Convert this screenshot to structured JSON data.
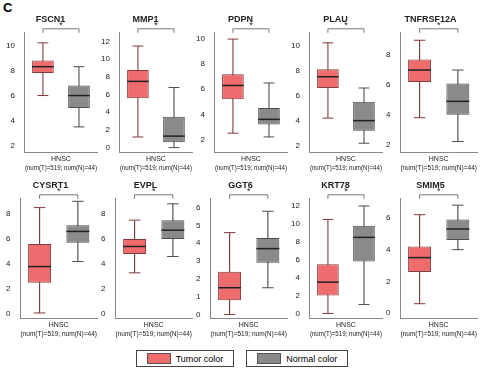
{
  "panel_label": "C",
  "chart_data": [
    {
      "type": "box",
      "title": "FSCN1",
      "x_label": "HNSC",
      "subtitle": "(num(T)=519; num(N)=44)",
      "annotation": "*",
      "categories": [
        null,
        null
      ],
      "ylim": [
        1.5,
        11
      ],
      "yticks": [
        2,
        4,
        6,
        8,
        10
      ],
      "grid": false,
      "series": [
        {
          "name": "Tumor color",
          "color": "#ee6b6e",
          "min": 6.0,
          "q1": 7.8,
          "median": 8.3,
          "q3": 8.8,
          "max": 10.2
        },
        {
          "name": "Normal color",
          "color": "#8a8a8a",
          "min": 3.5,
          "q1": 5.0,
          "median": 6.0,
          "q3": 6.8,
          "max": 8.3
        }
      ]
    },
    {
      "type": "box",
      "title": "MMP1",
      "x_label": "HNSC",
      "subtitle": "(num(T)=519; num(N)=44)",
      "annotation": "*",
      "categories": [
        null,
        null
      ],
      "ylim": [
        -0.5,
        13
      ],
      "yticks": [
        0,
        2,
        4,
        6,
        8,
        10,
        12
      ],
      "grid": false,
      "series": [
        {
          "name": "Tumor color",
          "color": "#ee6b6e",
          "min": 1.2,
          "q1": 5.6,
          "median": 7.5,
          "q3": 8.8,
          "max": 11.5
        },
        {
          "name": "Normal color",
          "color": "#8a8a8a",
          "min": 0,
          "q1": 0.6,
          "median": 1.3,
          "q3": 3.5,
          "max": 6.8
        }
      ]
    },
    {
      "type": "box",
      "title": "PDPN",
      "x_label": "HNSC",
      "subtitle": "(num(T)=519; num(N)=44)",
      "annotation": "*",
      "categories": [
        null,
        null
      ],
      "ylim": [
        1,
        10.5
      ],
      "yticks": [
        2,
        4,
        6,
        8,
        10
      ],
      "grid": false,
      "series": [
        {
          "name": "Tumor color",
          "color": "#ee6b6e",
          "min": 2.5,
          "q1": 5.2,
          "median": 6.3,
          "q3": 7.2,
          "max": 10.0
        },
        {
          "name": "Normal color",
          "color": "#8a8a8a",
          "min": 2.2,
          "q1": 3.2,
          "median": 3.6,
          "q3": 4.5,
          "max": 6.5
        }
      ]
    },
    {
      "type": "box",
      "title": "PLAU",
      "x_label": "HNSC",
      "subtitle": "(num(T)=519; num(N)=44)",
      "annotation": "*",
      "categories": [
        null,
        null
      ],
      "ylim": [
        1.5,
        11
      ],
      "yticks": [
        2,
        4,
        6,
        8,
        10
      ],
      "grid": false,
      "series": [
        {
          "name": "Tumor color",
          "color": "#ee6b6e",
          "min": 4.2,
          "q1": 6.6,
          "median": 7.5,
          "q3": 8.1,
          "max": 10.2
        },
        {
          "name": "Normal color",
          "color": "#8a8a8a",
          "min": 2.2,
          "q1": 3.2,
          "median": 4.0,
          "q3": 5.5,
          "max": 6.6
        }
      ]
    },
    {
      "type": "box",
      "title": "TNFRSF12A",
      "x_label": "HNSC",
      "subtitle": "(num(T)=519; num(N)=44)",
      "annotation": "*",
      "categories": [
        null,
        null
      ],
      "ylim": [
        1.5,
        9.5
      ],
      "yticks": [
        2,
        4,
        6,
        8
      ],
      "grid": false,
      "series": [
        {
          "name": "Tumor color",
          "color": "#ee6b6e",
          "min": 3.8,
          "q1": 6.2,
          "median": 7.0,
          "q3": 7.7,
          "max": 9.0
        },
        {
          "name": "Normal color",
          "color": "#8a8a8a",
          "min": 2.2,
          "q1": 4.0,
          "median": 4.9,
          "q3": 6.1,
          "max": 7.0
        }
      ]
    },
    {
      "type": "box",
      "title": "CYSRT1",
      "x_label": "HNSC",
      "subtitle": "(num(T)=519; num(N)=44)",
      "annotation": "*",
      "categories": [
        null,
        null
      ],
      "ylim": [
        -0.3,
        9.2
      ],
      "yticks": [
        0,
        2,
        4,
        6,
        8
      ],
      "grid": false,
      "series": [
        {
          "name": "Tumor color",
          "color": "#ee6b6e",
          "min": 0.1,
          "q1": 2.5,
          "median": 3.8,
          "q3": 5.6,
          "max": 8.5
        },
        {
          "name": "Normal color",
          "color": "#8a8a8a",
          "min": 4.2,
          "q1": 5.7,
          "median": 6.6,
          "q3": 7.1,
          "max": 9.0
        }
      ]
    },
    {
      "type": "box",
      "title": "EVPL",
      "x_label": "HNSC",
      "subtitle": "(num(T)=519; num(N)=44)",
      "annotation": "*",
      "categories": [
        null,
        null
      ],
      "ylim": [
        -0.3,
        9.2
      ],
      "yticks": [
        0,
        2,
        4,
        6,
        8
      ],
      "grid": false,
      "series": [
        {
          "name": "Tumor color",
          "color": "#ee6b6e",
          "min": 3.3,
          "q1": 4.8,
          "median": 5.4,
          "q3": 6.0,
          "max": 7.5
        },
        {
          "name": "Normal color",
          "color": "#8a8a8a",
          "min": 4.6,
          "q1": 6.0,
          "median": 6.7,
          "q3": 7.5,
          "max": 8.8
        }
      ]
    },
    {
      "type": "box",
      "title": "GGT6",
      "x_label": "HNSC",
      "subtitle": "(num(T)=519; num(N)=44)",
      "annotation": "*",
      "categories": [
        null,
        null
      ],
      "ylim": [
        -0.2,
        6.5
      ],
      "yticks": [
        0,
        1,
        2,
        3,
        4,
        5,
        6
      ],
      "grid": false,
      "series": [
        {
          "name": "Tumor color",
          "color": "#ee6b6e",
          "min": 0,
          "q1": 0.8,
          "median": 1.5,
          "q3": 2.4,
          "max": 4.6
        },
        {
          "name": "Normal color",
          "color": "#8a8a8a",
          "min": 1.5,
          "q1": 2.9,
          "median": 3.7,
          "q3": 4.3,
          "max": 5.8
        }
      ]
    },
    {
      "type": "box",
      "title": "KRT78",
      "x_label": "HNSC",
      "subtitle": "(num(T)=519; num(N)=44)",
      "annotation": "*",
      "categories": [
        null,
        null
      ],
      "ylim": [
        -0.5,
        12.8
      ],
      "yticks": [
        0,
        2,
        4,
        6,
        8,
        10,
        12
      ],
      "grid": false,
      "series": [
        {
          "name": "Tumor color",
          "color": "#ee6b6e",
          "min": 0,
          "q1": 2.0,
          "median": 3.5,
          "q3": 5.5,
          "max": 10.5
        },
        {
          "name": "Normal color",
          "color": "#8a8a8a",
          "min": 1.0,
          "q1": 5.8,
          "median": 8.5,
          "q3": 9.8,
          "max": 12.0
        }
      ]
    },
    {
      "type": "box",
      "title": "SMIM5",
      "x_label": "HNSC",
      "subtitle": "(num(T)=519; num(N)=44)",
      "annotation": "*",
      "categories": [
        null,
        null
      ],
      "ylim": [
        -0.3,
        7.2
      ],
      "yticks": [
        0,
        2,
        4,
        6
      ],
      "grid": false,
      "series": [
        {
          "name": "Tumor color",
          "color": "#ee6b6e",
          "min": 0.6,
          "q1": 2.6,
          "median": 3.5,
          "q3": 4.2,
          "max": 6.2
        },
        {
          "name": "Normal color",
          "color": "#8a8a8a",
          "min": 4.0,
          "q1": 4.6,
          "median": 5.3,
          "q3": 5.9,
          "max": 6.8
        }
      ]
    }
  ]
}
